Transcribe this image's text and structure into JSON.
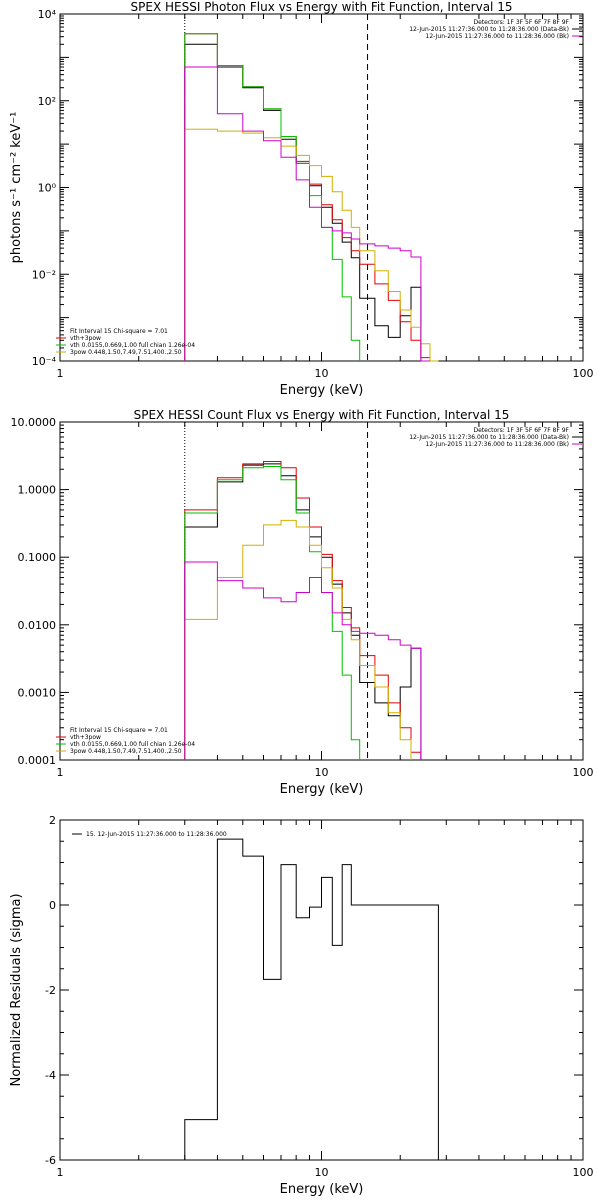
{
  "chart_data": [
    {
      "type": "line",
      "id": "photon",
      "title": "SPEX HESSI Photon Flux vs Energy with Fit Function, Interval 15",
      "xlabel": "Energy (keV)",
      "ylabel": "photons s⁻¹ cm⁻² keV⁻¹",
      "xscale": "log",
      "yscale": "log",
      "xlim": [
        1,
        100
      ],
      "ylim": [
        0.0001,
        10000
      ],
      "xticks": [
        {
          "v": 1,
          "label": "1"
        },
        {
          "v": 10,
          "label": "10"
        },
        {
          "v": 100,
          "label": "100"
        }
      ],
      "yticks": [
        {
          "v": 0.0001,
          "label": "10⁻⁴"
        },
        {
          "v": 0.01,
          "label": "10⁻²"
        },
        {
          "v": 1,
          "label": "10⁰"
        },
        {
          "v": 100,
          "label": "10²"
        },
        {
          "v": 10000,
          "label": "10⁴"
        }
      ],
      "vlines": [
        {
          "x": 3,
          "style": "dotted"
        },
        {
          "x": 15,
          "style": "dashed"
        }
      ],
      "edges": [
        3,
        4,
        5,
        6,
        7,
        8,
        9,
        10,
        11,
        12,
        13,
        14,
        16,
        18,
        20,
        22,
        24,
        26,
        28,
        30,
        32
      ],
      "legend_tr": [
        {
          "text": "Detectors: 1F 3F 5F 6F 7F 8F 9F",
          "color": ""
        },
        {
          "text": "12-Jun-2015 11:27:36.000 to 11:28:36.000 (Data-Bk)",
          "color": "#000000"
        },
        {
          "text": "12-Jun-2015 11:27:36.000 to 11:28:36.000 (Bk)",
          "color": "#d000d0"
        }
      ],
      "legend_bl": [
        {
          "text": "Fit Interval 15    Chi-square = 7.01",
          "color": ""
        },
        {
          "text": "vth+3pow",
          "color": "#e00000"
        },
        {
          "text": "vth 0.0155,0.669,1.00  full chian 1.26e-04",
          "color": "#00c000"
        },
        {
          "text": "3pow 0.448,1.50,7.49,7.51,400.,2.50",
          "color": "#d0b000"
        }
      ],
      "series": [
        {
          "color": "#000000",
          "values": [
            2000,
            600,
            200,
            60,
            13,
            3.6,
            1.1,
            0.35,
            0.15,
            0.055,
            0.024,
            0.0028,
            0.00065,
            0.00035,
            0.0011,
            0.005,
            null,
            null,
            null,
            null
          ]
        },
        {
          "color": "#e00000",
          "values": [
            3500,
            650,
            210,
            65,
            15,
            4,
            1.2,
            0.4,
            0.18,
            0.07,
            0.035,
            0.017,
            0.006,
            0.0025,
            0.0008,
            0.0003,
            0.00012,
            null,
            null,
            null
          ]
        },
        {
          "color": "#00c000",
          "values": [
            3500,
            650,
            210,
            65,
            15,
            3.6,
            0.65,
            0.12,
            0.022,
            0.003,
            0.0003,
            null,
            null,
            null,
            null,
            null,
            null,
            null,
            null,
            null
          ]
        },
        {
          "color": "#d0b000",
          "values": [
            22,
            20,
            18,
            14,
            9,
            5.5,
            3.2,
            1.8,
            0.8,
            0.3,
            0.12,
            0.035,
            0.012,
            0.004,
            0.0015,
            0.0006,
            0.00025,
            0.0001,
            null,
            null
          ]
        },
        {
          "color": "#d000d0",
          "values": [
            600,
            50,
            20,
            12,
            5,
            1.5,
            0.35,
            0.12,
            0.1,
            0.09,
            0.065,
            0.05,
            0.045,
            0.04,
            0.035,
            0.025,
            0.0001,
            null,
            null,
            null
          ]
        }
      ]
    },
    {
      "type": "line",
      "id": "count",
      "title": "SPEX HESSI Count Flux vs Energy with Fit Function, Interval 15",
      "xlabel": "Energy (keV)",
      "ylabel": "",
      "xscale": "log",
      "yscale": "log",
      "xlim": [
        1,
        100
      ],
      "ylim": [
        0.0001,
        10
      ],
      "xticks": [
        {
          "v": 1,
          "label": "1"
        },
        {
          "v": 10,
          "label": "10"
        },
        {
          "v": 100,
          "label": "100"
        }
      ],
      "yticks": [
        {
          "v": 0.0001,
          "label": "0.0001"
        },
        {
          "v": 0.001,
          "label": "0.0010"
        },
        {
          "v": 0.01,
          "label": "0.0100"
        },
        {
          "v": 0.1,
          "label": "0.1000"
        },
        {
          "v": 1,
          "label": "1.0000"
        },
        {
          "v": 10,
          "label": "10.0000"
        }
      ],
      "vlines": [
        {
          "x": 3,
          "style": "dotted"
        },
        {
          "x": 15,
          "style": "dashed"
        }
      ],
      "edges": [
        3,
        4,
        5,
        6,
        7,
        8,
        9,
        10,
        11,
        12,
        13,
        14,
        16,
        18,
        20,
        22,
        24,
        26,
        28,
        30,
        32
      ],
      "legend_tr": [
        {
          "text": "Detectors: 1F 3F 5F 6F 7F 8F 9F",
          "color": ""
        },
        {
          "text": "12-Jun-2015 11:27:36.000 to 11:28:36.000 (Data-Bk)",
          "color": "#000000"
        },
        {
          "text": "12-Jun-2015 11:27:36.000 to 11:28:36.000 (Bk)",
          "color": "#d000d0"
        }
      ],
      "legend_bl": [
        {
          "text": "Fit Interval 15    Chi-square = 7.01",
          "color": ""
        },
        {
          "text": "vth+3pow",
          "color": "#e00000"
        },
        {
          "text": "vth 0.0155,0.669,1.00  full chian 1.26e-04",
          "color": "#00c000"
        },
        {
          "text": "3pow 0.448,1.50,7.49,7.51,400.,2.50",
          "color": "#d0b000"
        }
      ],
      "series": [
        {
          "color": "#000000",
          "values": [
            0.28,
            1.3,
            2.3,
            2.4,
            1.6,
            0.5,
            0.2,
            0.1,
            0.04,
            0.015,
            0.007,
            0.0014,
            0.0007,
            0.00045,
            0.0012,
            0.0045,
            null,
            null,
            null,
            null
          ]
        },
        {
          "color": "#e00000",
          "values": [
            0.5,
            1.5,
            2.4,
            2.6,
            2.1,
            0.75,
            0.28,
            0.11,
            0.045,
            0.018,
            0.009,
            0.0035,
            0.0018,
            0.0007,
            0.0003,
            0.00013,
            null,
            null,
            null,
            null
          ]
        },
        {
          "color": "#00c000",
          "values": [
            0.45,
            1.4,
            2.1,
            2.2,
            1.4,
            0.45,
            0.12,
            0.03,
            0.008,
            0.0018,
            0.0002,
            null,
            null,
            null,
            null,
            null,
            null,
            null,
            null,
            null
          ]
        },
        {
          "color": "#d0b000",
          "values": [
            0.012,
            0.05,
            0.15,
            0.3,
            0.35,
            0.28,
            0.15,
            0.07,
            0.035,
            0.012,
            0.006,
            0.0025,
            0.0012,
            0.0005,
            0.0002,
            null,
            null,
            null,
            null,
            null
          ]
        },
        {
          "color": "#d000d0",
          "values": [
            0.085,
            0.045,
            0.035,
            0.025,
            0.022,
            0.03,
            0.05,
            0.03,
            0.015,
            0.01,
            0.008,
            0.0075,
            0.007,
            0.006,
            0.005,
            0.0045,
            null,
            null,
            null,
            null
          ]
        }
      ]
    },
    {
      "type": "line",
      "id": "resid",
      "title": "",
      "xlabel": "Energy (keV)",
      "ylabel": "Normalized Residuals (sigma)",
      "xscale": "log",
      "yscale": "linear",
      "xlim": [
        1,
        100
      ],
      "ylim": [
        -6,
        2
      ],
      "xticks": [
        {
          "v": 1,
          "label": "1"
        },
        {
          "v": 10,
          "label": "10"
        },
        {
          "v": 100,
          "label": "100"
        }
      ],
      "yticks": [
        {
          "v": -6,
          "label": "-6"
        },
        {
          "v": -4,
          "label": "-4"
        },
        {
          "v": -2,
          "label": "-2"
        },
        {
          "v": 0,
          "label": "0"
        },
        {
          "v": 2,
          "label": "2"
        }
      ],
      "vlines": [],
      "edges": [
        3,
        4,
        5,
        6,
        7,
        8,
        9,
        10,
        11,
        12,
        13,
        14,
        16,
        18,
        20,
        22,
        24,
        26,
        28
      ],
      "legend_tr": [],
      "legend_bl": [],
      "legend_tl": [
        {
          "text": "15. 12-Jun-2015 11:27:36.000 to 11:28:36.000",
          "color": "#000000"
        }
      ],
      "series": [
        {
          "color": "#000000",
          "values": [
            -5.05,
            1.55,
            1.15,
            -1.75,
            0.95,
            -0.3,
            -0.05,
            0.65,
            -0.95,
            0.95,
            0,
            0,
            0,
            0,
            0,
            0,
            0,
            0
          ]
        }
      ]
    }
  ]
}
